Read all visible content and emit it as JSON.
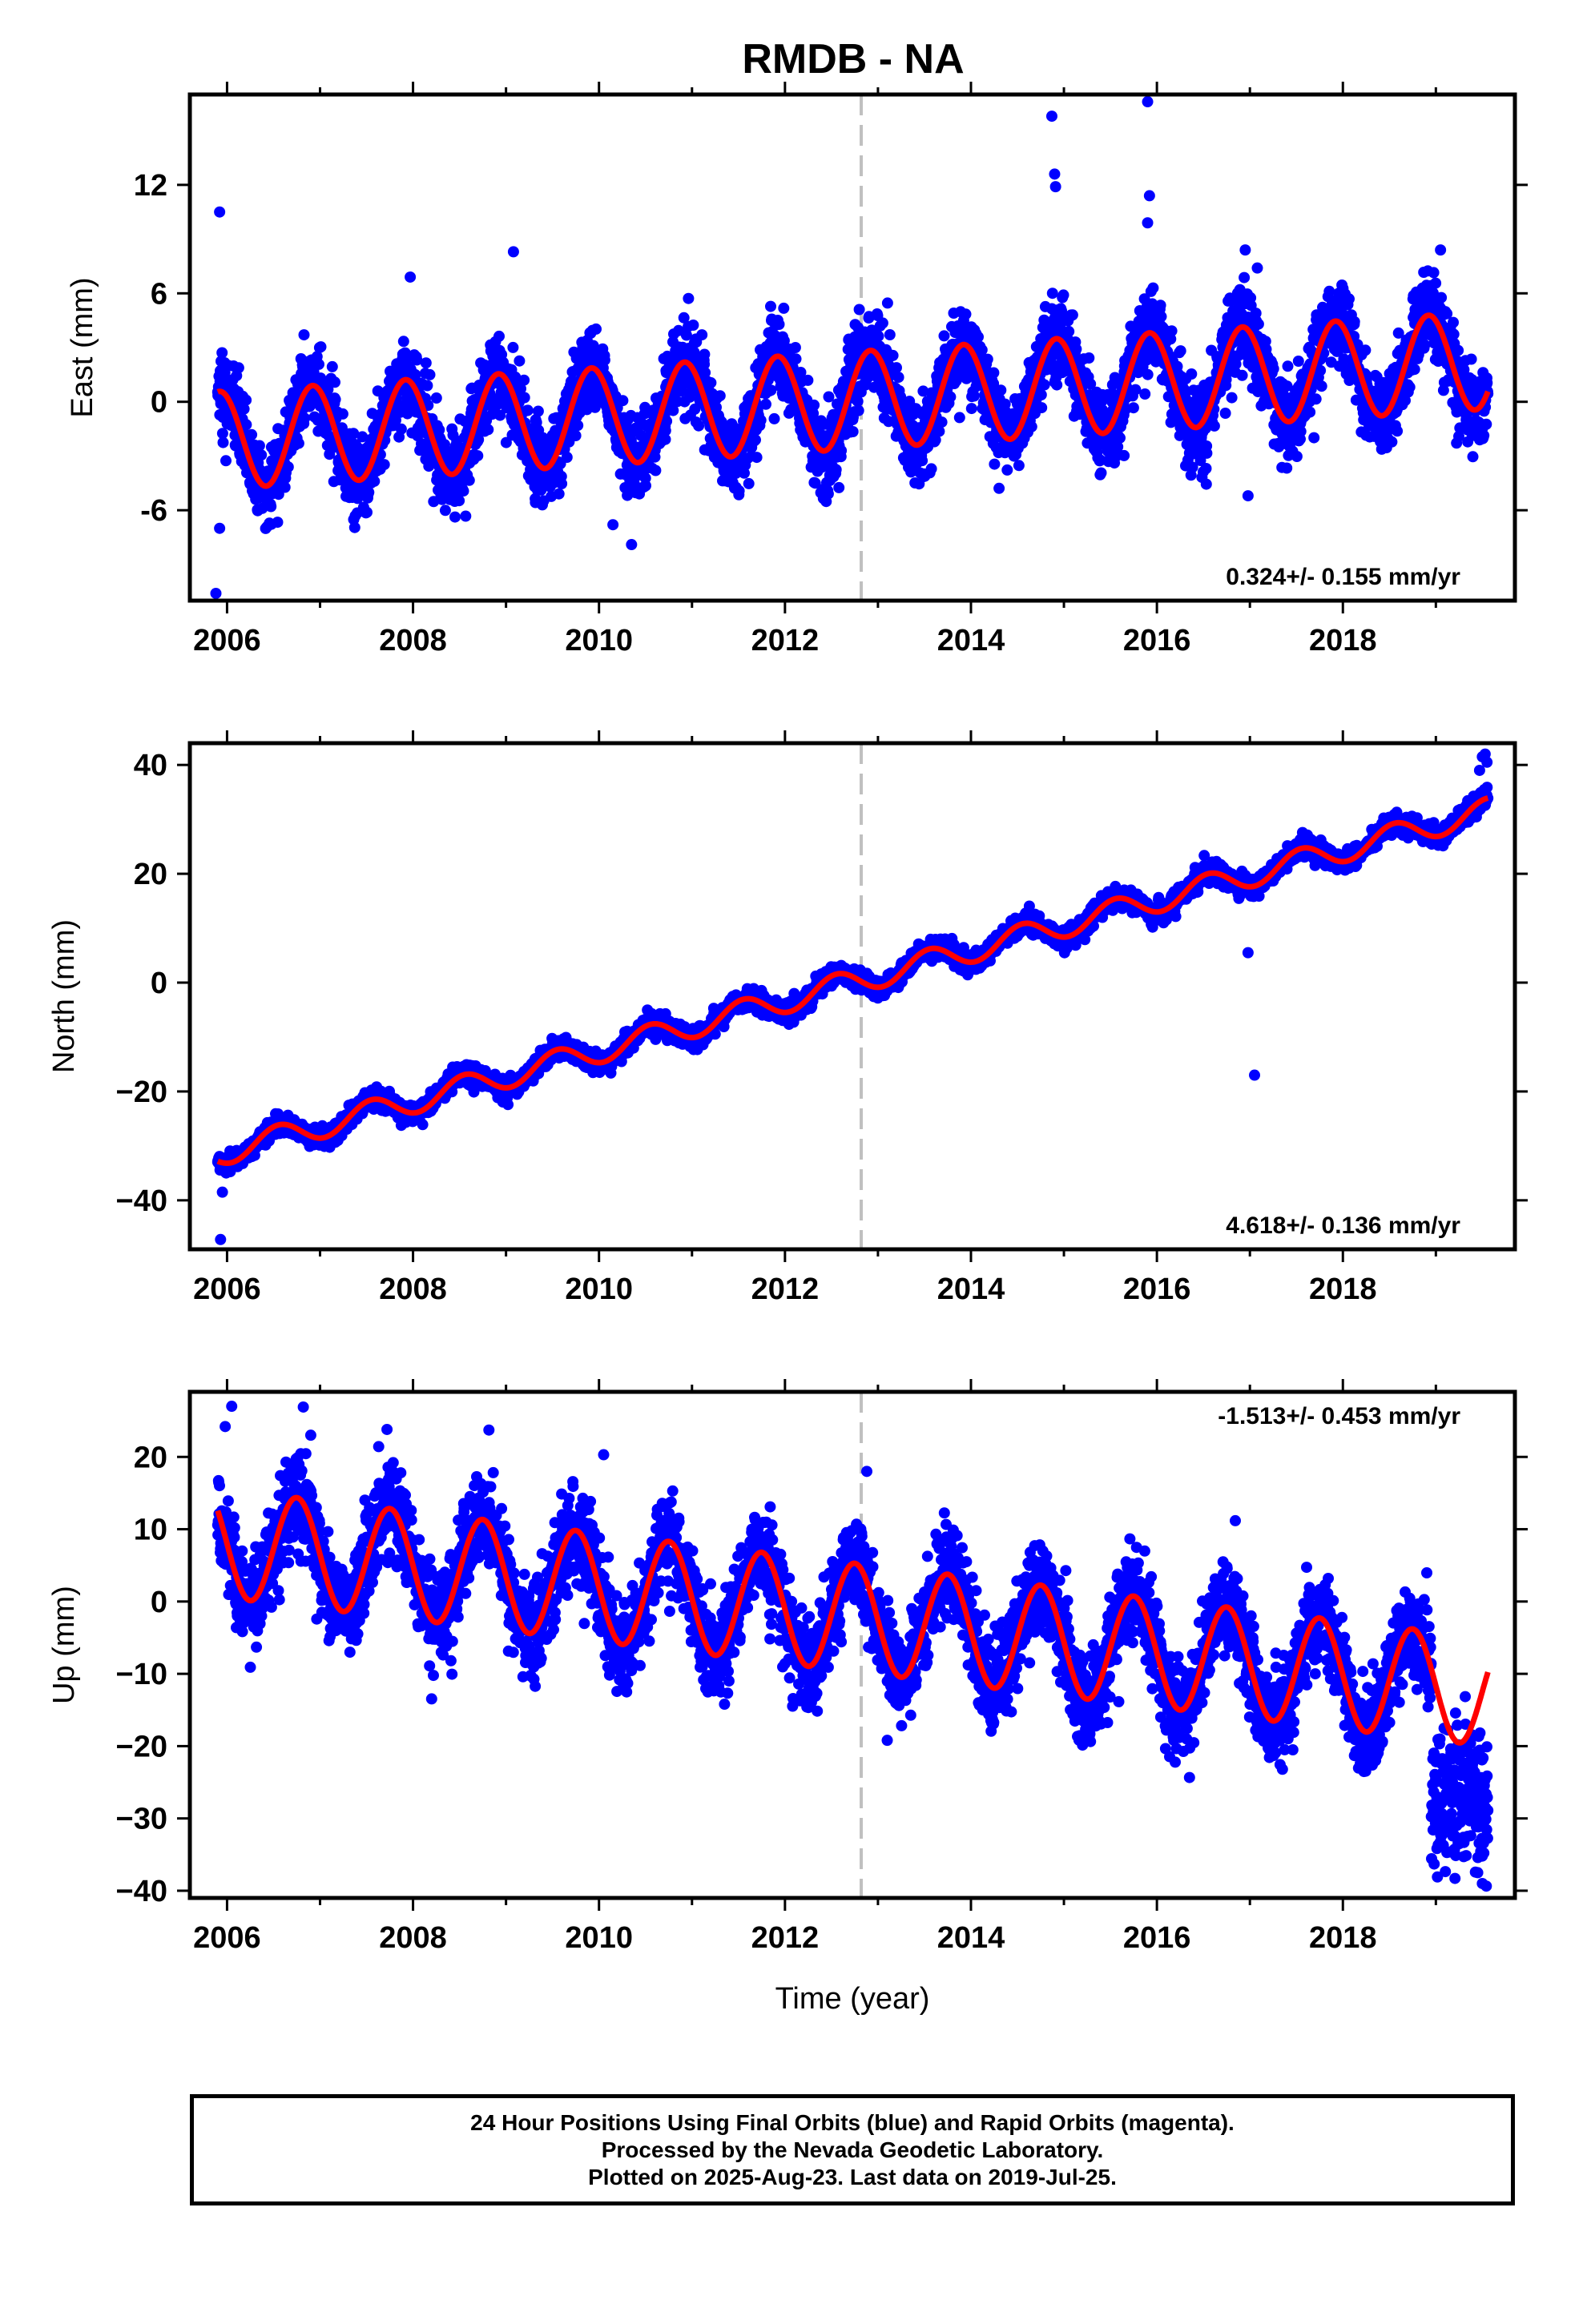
{
  "figure": {
    "title": "RMDB - NA",
    "footer": [
      "24 Hour Positions Using Final Orbits (blue) and Rapid Orbits (magenta).",
      "Processed by the Nevada Geodetic Laboratory.",
      "Plotted on 2025-Aug-23. Last data on 2019-Jul-25."
    ]
  },
  "colors": {
    "points": "#0000ff",
    "fit": "#ff0000",
    "break_line": "#c0c0c0",
    "frame": "#000000"
  },
  "chart_data": [
    {
      "type": "scatter",
      "name": "east",
      "ylabel": "East (mm)",
      "xlabel": "",
      "rate_label": "0.324+/- 0.155 mm/yr",
      "rate_position": "bottom-right",
      "xlim": [
        2005.6,
        2019.85
      ],
      "ylim": [
        -11,
        17
      ],
      "x_ticks": [
        2006,
        2008,
        2010,
        2012,
        2014,
        2016,
        2018
      ],
      "x_tick_labels": [
        "2006",
        "2008",
        "2010",
        "2012",
        "2014",
        "2016",
        "2018"
      ],
      "y_ticks": [
        -6,
        0,
        6,
        12
      ],
      "y_tick_labels": [
        "-6",
        "0",
        "6",
        "12"
      ],
      "break_year": 2012.82,
      "data_range": [
        2005.9,
        2019.56
      ],
      "model": {
        "intercept_at_2006": -2.1,
        "rate_mm_per_yr": 0.324,
        "annual_amplitude": 2.7,
        "annual_peak_phase_year": 0.92,
        "noise_sd": 1.1
      },
      "outliers": [
        {
          "x": 2014.87,
          "y": 15.8
        },
        {
          "x": 2015.9,
          "y": 16.6
        },
        {
          "x": 2014.9,
          "y": 12.6
        },
        {
          "x": 2014.91,
          "y": 11.9
        },
        {
          "x": 2015.92,
          "y": 11.4
        },
        {
          "x": 2015.9,
          "y": 9.9
        },
        {
          "x": 2005.92,
          "y": 10.5
        },
        {
          "x": 2009.08,
          "y": 8.3
        },
        {
          "x": 2007.97,
          "y": 6.9
        },
        {
          "x": 2005.88,
          "y": -10.6
        },
        {
          "x": 2005.92,
          "y": -7.0
        },
        {
          "x": 2010.15,
          "y": -6.8
        },
        {
          "x": 2010.35,
          "y": -7.9
        },
        {
          "x": 2016.98,
          "y": -5.2
        },
        {
          "x": 2016.95,
          "y": 8.4
        },
        {
          "x": 2017.08,
          "y": 7.4
        },
        {
          "x": 2019.05,
          "y": 8.4
        }
      ]
    },
    {
      "type": "scatter",
      "name": "north",
      "ylabel": "North (mm)",
      "xlabel": "",
      "rate_label": "4.618+/- 0.136 mm/yr",
      "rate_position": "bottom-right",
      "xlim": [
        2005.6,
        2019.85
      ],
      "ylim": [
        -49,
        44
      ],
      "x_ticks": [
        2006,
        2008,
        2010,
        2012,
        2014,
        2016,
        2018
      ],
      "x_tick_labels": [
        "2006",
        "2008",
        "2010",
        "2012",
        "2014",
        "2016",
        "2018"
      ],
      "y_ticks": [
        -40,
        -20,
        0,
        20,
        40
      ],
      "y_tick_labels": [
        "−40",
        "−20",
        "0",
        "20",
        "40"
      ],
      "break_year": 2012.82,
      "data_range": [
        2005.9,
        2019.56
      ],
      "model": {
        "intercept_at_2006": -31.0,
        "rate_mm_per_yr": 4.618,
        "annual_amplitude": 2.3,
        "annual_peak_phase_year": 0.55,
        "noise_sd": 0.9
      },
      "outliers": [
        {
          "x": 2005.93,
          "y": -47.2
        },
        {
          "x": 2005.95,
          "y": -38.5
        },
        {
          "x": 2017.05,
          "y": -17.0
        },
        {
          "x": 2016.98,
          "y": 5.5
        },
        {
          "x": 2019.5,
          "y": 41.5
        },
        {
          "x": 2019.53,
          "y": 42.0
        },
        {
          "x": 2019.55,
          "y": 40.5
        },
        {
          "x": 2019.47,
          "y": 39.0
        }
      ]
    },
    {
      "type": "scatter",
      "name": "up",
      "ylabel": "Up (mm)",
      "xlabel": "Time (year)",
      "rate_label": "-1.513+/- 0.453 mm/yr",
      "rate_position": "top-right",
      "xlim": [
        2005.6,
        2019.85
      ],
      "ylim": [
        -41,
        29
      ],
      "x_ticks": [
        2006,
        2008,
        2010,
        2012,
        2014,
        2016,
        2018
      ],
      "x_tick_labels": [
        "2006",
        "2008",
        "2010",
        "2012",
        "2014",
        "2016",
        "2018"
      ],
      "y_ticks": [
        -40,
        -30,
        -20,
        -10,
        0,
        10,
        20
      ],
      "y_tick_labels": [
        "−40",
        "−30",
        "−20",
        "−10",
        "0",
        "10",
        "20"
      ],
      "break_year": 2012.82,
      "data_range": [
        2005.9,
        2019.56
      ],
      "model": {
        "intercept_at_2006": 8.0,
        "rate_mm_per_yr": -1.513,
        "annual_amplitude": 7.5,
        "annual_peak_phase_year": 0.75,
        "noise_sd": 3.2
      },
      "late_excursion": {
        "start": 2018.95,
        "end": 2019.56,
        "y_center": -27,
        "spread": 4.5
      },
      "outliers": [
        {
          "x": 2006.05,
          "y": 27.0
        },
        {
          "x": 2006.82,
          "y": 26.9
        },
        {
          "x": 2005.98,
          "y": 24.2
        },
        {
          "x": 2007.72,
          "y": 23.8
        },
        {
          "x": 2006.9,
          "y": 23.0
        },
        {
          "x": 2010.05,
          "y": 20.3
        },
        {
          "x": 2012.88,
          "y": 18.0
        },
        {
          "x": 2013.1,
          "y": -19.2
        },
        {
          "x": 2017.35,
          "y": -23.2
        },
        {
          "x": 2011.35,
          "y": -14.2
        },
        {
          "x": 2019.5,
          "y": -39.0
        },
        {
          "x": 2019.45,
          "y": -37.5
        }
      ]
    }
  ]
}
